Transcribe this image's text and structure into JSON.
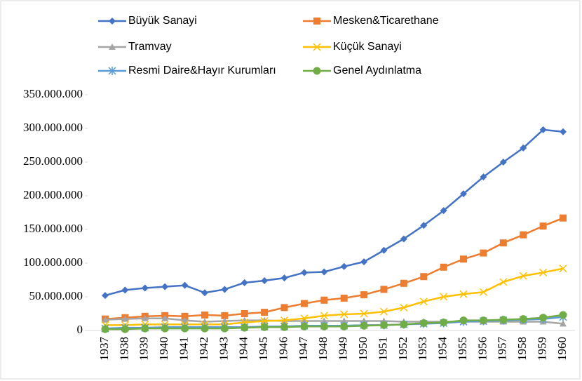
{
  "chart_data": {
    "type": "line",
    "categories": [
      "1937",
      "1938",
      "1939",
      "1940",
      "1941",
      "1942",
      "1943",
      "1944",
      "1945",
      "1946",
      "1947",
      "1948",
      "1949",
      "1950",
      "1951",
      "1952",
      "1953",
      "1954",
      "1955",
      "1956",
      "1957",
      "1958",
      "1959",
      "1960"
    ],
    "series": [
      {
        "name": "Büyük Sanayi",
        "color": "#4472c4",
        "marker": "diamond",
        "values": [
          52000000,
          60000000,
          63000000,
          65000000,
          67000000,
          56000000,
          61000000,
          71000000,
          74000000,
          78000000,
          86000000,
          87000000,
          95000000,
          102000000,
          119000000,
          136000000,
          156000000,
          178000000,
          203000000,
          228000000,
          250000000,
          271000000,
          298000000,
          295000000
        ]
      },
      {
        "name": "Mesken&Ticarethane",
        "color": "#ed7d31",
        "marker": "square",
        "values": [
          17000000,
          19000000,
          21000000,
          22000000,
          21000000,
          23000000,
          22000000,
          25000000,
          27000000,
          34000000,
          40000000,
          45000000,
          48000000,
          53000000,
          61000000,
          70000000,
          80000000,
          94000000,
          106000000,
          115000000,
          130000000,
          142000000,
          155000000,
          167000000
        ]
      },
      {
        "name": "Tramvay",
        "color": "#a5a5a5",
        "marker": "triangle",
        "values": [
          16000000,
          17000000,
          18000000,
          18000000,
          15000000,
          13000000,
          14000000,
          15000000,
          15000000,
          14000000,
          14000000,
          14000000,
          14000000,
          14000000,
          14000000,
          13000000,
          13000000,
          13000000,
          13000000,
          13000000,
          13000000,
          13000000,
          13000000,
          10000000
        ]
      },
      {
        "name": "Küçük Sanayi",
        "color": "#ffc000",
        "marker": "x",
        "values": [
          8000000,
          8000000,
          9000000,
          9000000,
          9000000,
          9000000,
          9000000,
          12000000,
          14000000,
          15000000,
          18000000,
          22000000,
          24000000,
          25000000,
          28000000,
          34000000,
          43000000,
          50000000,
          54000000,
          57000000,
          72000000,
          81000000,
          86000000,
          92000000
        ]
      },
      {
        "name": "Resmi Daire&Hayır Kurumları",
        "color": "#5b9bd5",
        "marker": "star",
        "values": [
          3000000,
          4000000,
          4000000,
          5000000,
          5000000,
          5000000,
          5000000,
          5000000,
          6000000,
          6000000,
          7000000,
          7000000,
          7000000,
          8000000,
          8000000,
          9000000,
          10000000,
          11000000,
          13000000,
          14000000,
          15000000,
          16000000,
          17000000,
          20000000
        ]
      },
      {
        "name": "Genel Aydınlatma",
        "color": "#70ad47",
        "marker": "circle",
        "values": [
          2000000,
          2000000,
          3000000,
          3000000,
          3000000,
          3000000,
          3000000,
          4000000,
          5000000,
          5000000,
          6000000,
          6000000,
          6000000,
          7000000,
          8000000,
          9000000,
          11000000,
          12000000,
          15000000,
          15000000,
          16000000,
          17000000,
          19000000,
          23000000
        ]
      }
    ],
    "ylim": [
      0,
      350000000
    ],
    "yticks": [
      0,
      {
        "value": 50000000,
        "label": "50.000.000"
      },
      {
        "value": 100000000,
        "label": "100.000.000"
      },
      {
        "value": 150000000,
        "label": "150.000.000"
      },
      {
        "value": 200000000,
        "label": "200.000.000"
      },
      {
        "value": 250000000,
        "label": "250.000.000"
      },
      {
        "value": 300000000,
        "label": "300.000.000"
      },
      {
        "value": 350000000,
        "label": "350.000.000"
      }
    ]
  }
}
